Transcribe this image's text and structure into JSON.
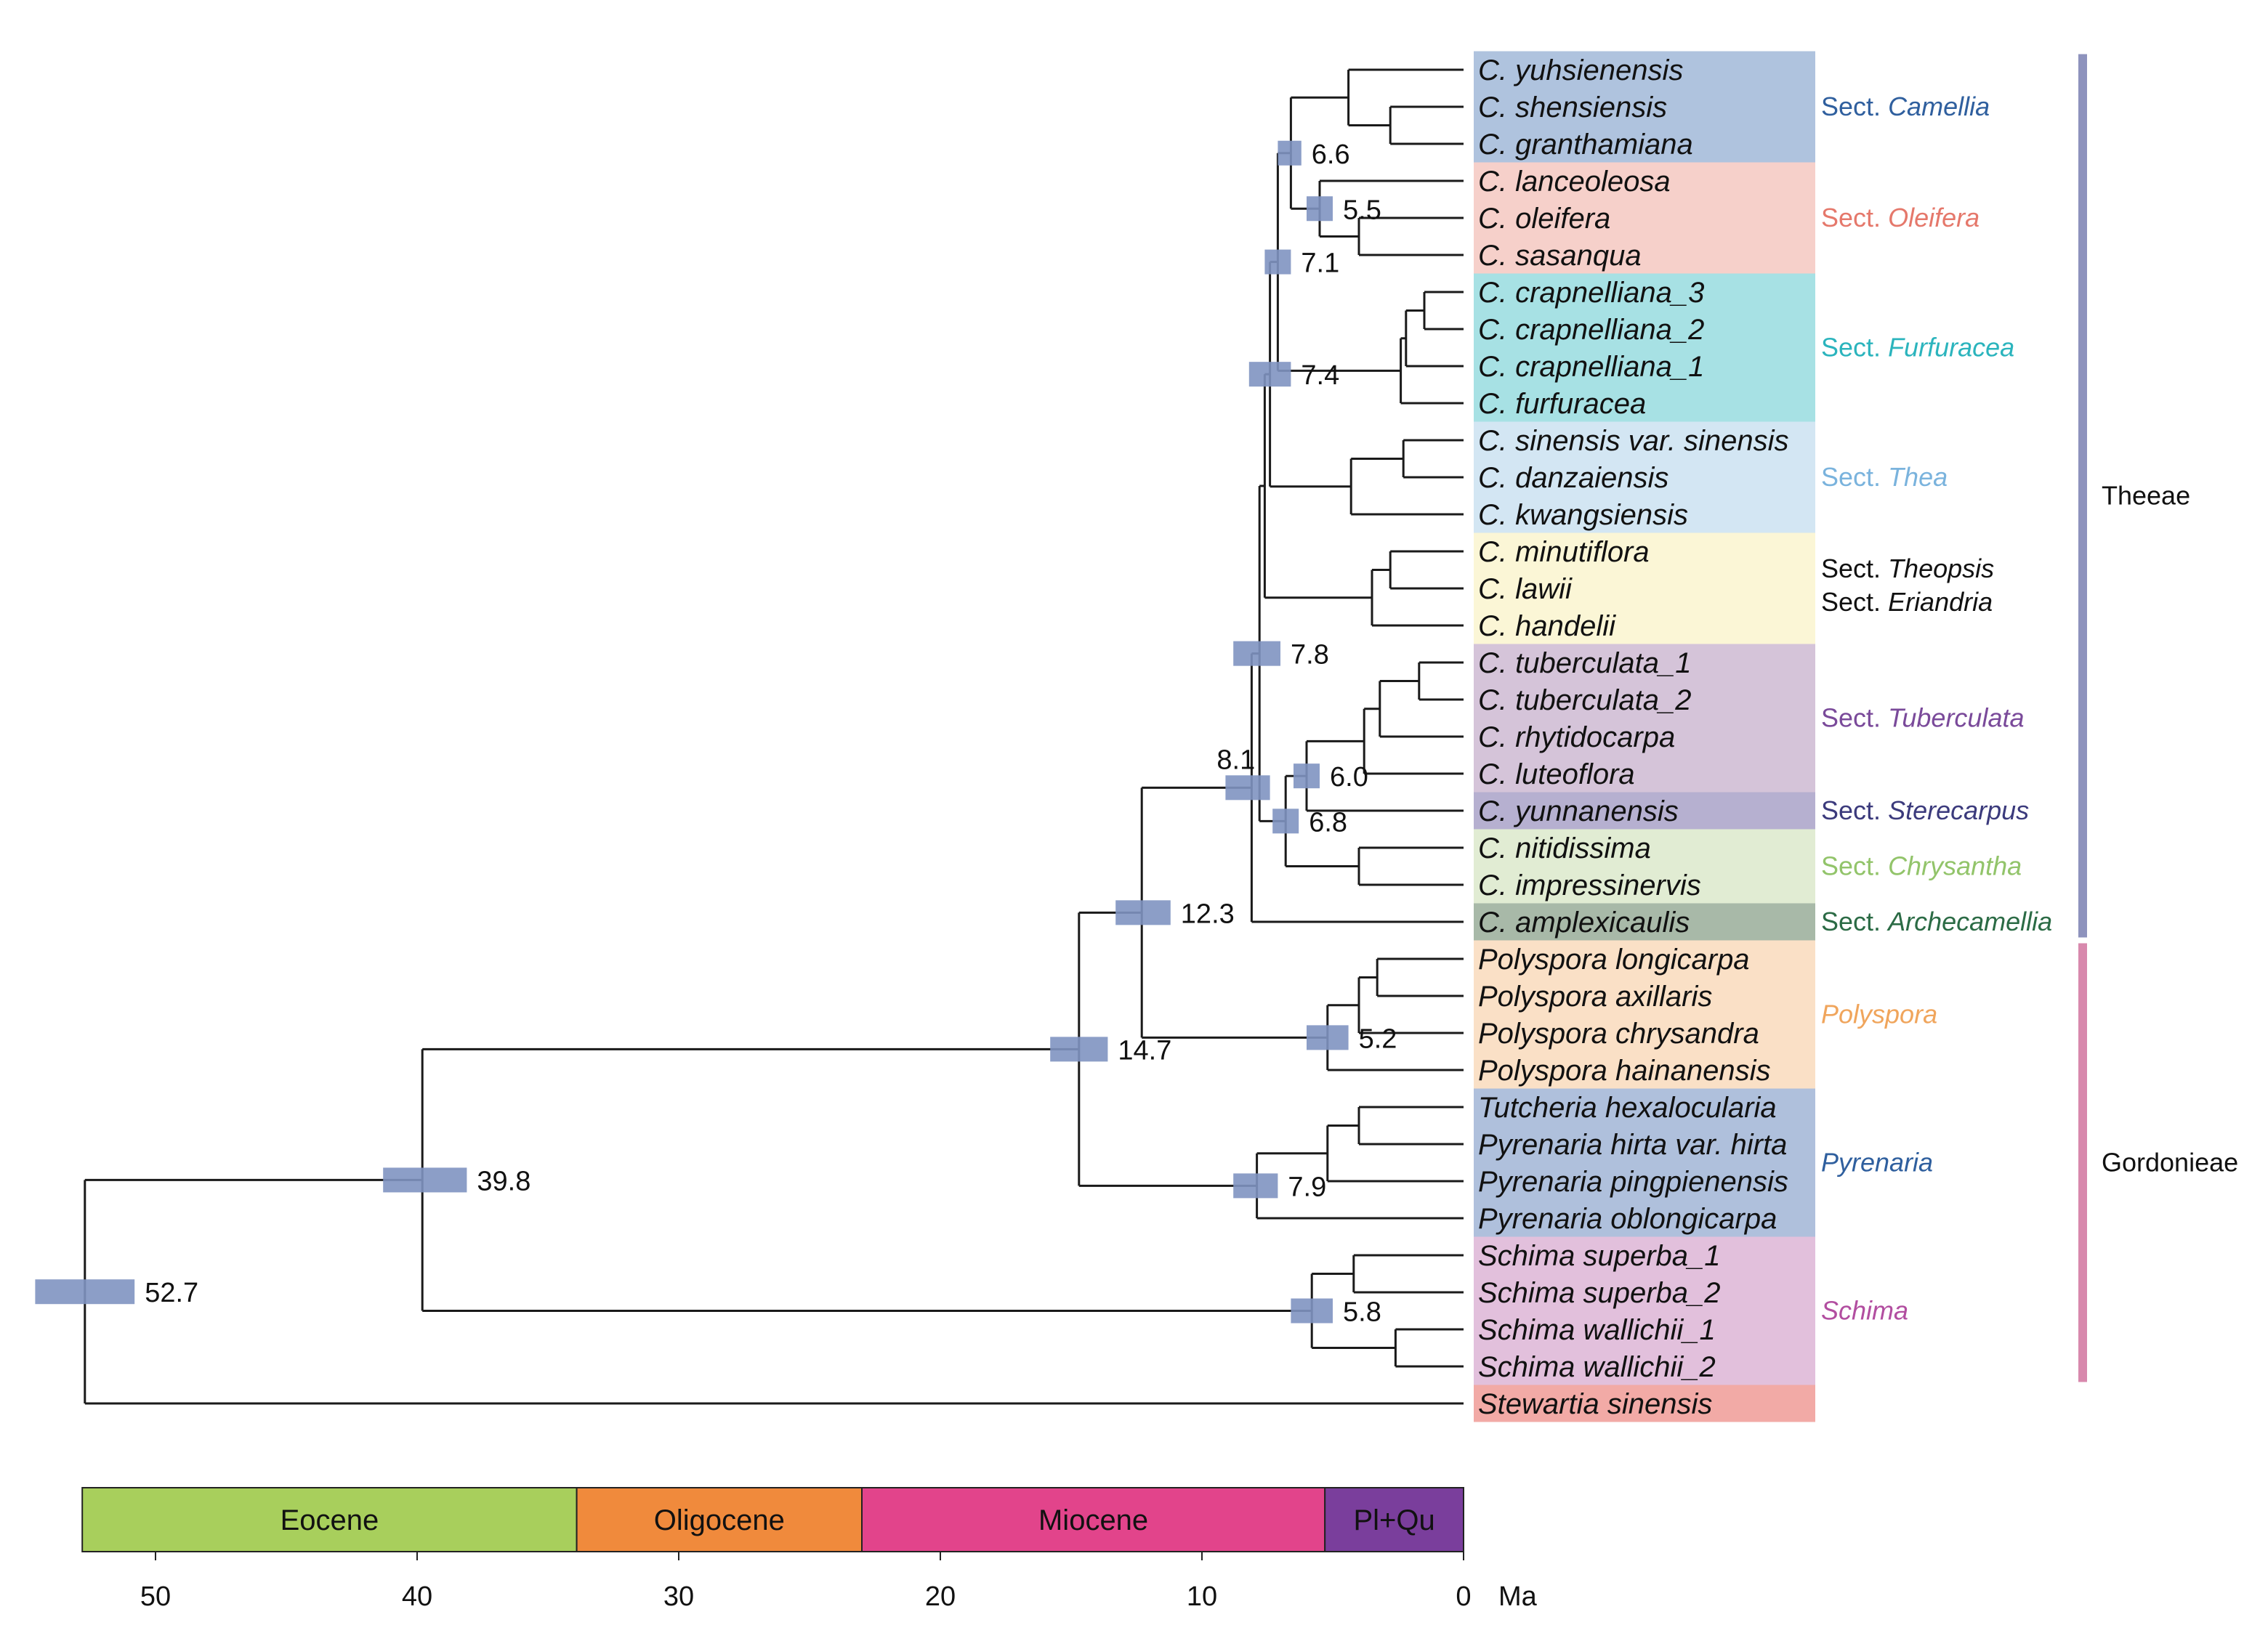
{
  "timescale": {
    "unit": "Ma",
    "ticks": [
      "50",
      "40",
      "30",
      "20",
      "10",
      "0"
    ],
    "epochs": [
      {
        "name": "Eocene",
        "start_ma": 52.8,
        "end_ma": 33.9,
        "color": "#a8cf5c"
      },
      {
        "name": "Oligocene",
        "start_ma": 33.9,
        "end_ma": 23.0,
        "color": "#f08a3c"
      },
      {
        "name": "Miocene",
        "start_ma": 23.0,
        "end_ma": 5.3,
        "color": "#e2448b"
      },
      {
        "name": "Pl+Qu",
        "start_ma": 5.3,
        "end_ma": 0,
        "color": "#7a3e9c"
      }
    ]
  },
  "taxa": [
    {
      "name": "C. yuhsienensis"
    },
    {
      "name": "C. shensiensis"
    },
    {
      "name": "C. granthamiana"
    },
    {
      "name": "C. lanceoleosa"
    },
    {
      "name": "C. oleifera"
    },
    {
      "name": "C. sasanqua"
    },
    {
      "name": "C. crapnelliana_3"
    },
    {
      "name": "C. crapnelliana_2"
    },
    {
      "name": "C. crapnelliana_1"
    },
    {
      "name": "C. furfuracea"
    },
    {
      "name": "C. sinensis var. sinensis"
    },
    {
      "name": "C. danzaiensis"
    },
    {
      "name": "C. kwangsiensis"
    },
    {
      "name": "C. minutiflora"
    },
    {
      "name": "C. lawii"
    },
    {
      "name": "C. handelii"
    },
    {
      "name": "C. tuberculata_1"
    },
    {
      "name": "C. tuberculata_2"
    },
    {
      "name": "C. rhytidocarpa"
    },
    {
      "name": "C. luteoflora"
    },
    {
      "name": "C. yunnanensis"
    },
    {
      "name": "C. nitidissima"
    },
    {
      "name": "C. impressinervis"
    },
    {
      "name": "C. amplexicaulis"
    },
    {
      "name": "Polyspora longicarpa"
    },
    {
      "name": "Polyspora axillaris"
    },
    {
      "name": "Polyspora chrysandra"
    },
    {
      "name": "Polyspora hainanensis"
    },
    {
      "name": "Tutcheria hexalocularia"
    },
    {
      "name": "Pyrenaria hirta var. hirta"
    },
    {
      "name": "Pyrenaria pingpienensis"
    },
    {
      "name": "Pyrenaria oblongicarpa"
    },
    {
      "name": "Schima superba_1"
    },
    {
      "name": "Schima superba_2"
    },
    {
      "name": "Schima wallichii_1"
    },
    {
      "name": "Schima wallichii_2"
    },
    {
      "name": "Stewartia sinensis"
    }
  ],
  "sections": [
    {
      "prefix": "Sect.",
      "name": "Camellia",
      "first": 0,
      "last": 2,
      "bg": "#afc3de",
      "text_color": "#2f5f9e"
    },
    {
      "prefix": "Sect.",
      "name": "Oleifera",
      "first": 3,
      "last": 5,
      "bg": "#f6d0ca",
      "text_color": "#e5786b"
    },
    {
      "prefix": "Sect.",
      "name": "Furfuracea",
      "first": 6,
      "last": 9,
      "bg": "#a7e1e4",
      "text_color": "#2bb4bd"
    },
    {
      "prefix": "Sect.",
      "name": "Thea",
      "first": 10,
      "last": 12,
      "bg": "#d3e6f3",
      "text_color": "#7ab3dd"
    },
    {
      "prefix": "Sect.",
      "name": "Theopsis",
      "first": 13,
      "last": 15,
      "bg": "#fbf6d6",
      "text_color": "#111111"
    },
    {
      "prefix": "Sect.",
      "name": "Eriandria",
      "first": 13,
      "last": 15,
      "bg": "",
      "text_color": "#111111"
    },
    {
      "prefix": "Sect.",
      "name": "Tuberculata",
      "first": 16,
      "last": 19,
      "bg": "#d5c4d9",
      "text_color": "#7a4a9a"
    },
    {
      "prefix": "Sect.",
      "name": "Sterecarpus",
      "first": 20,
      "last": 20,
      "bg": "#b6b0d0",
      "text_color": "#3b3a7c"
    },
    {
      "prefix": "Sect.",
      "name": "Chrysantha",
      "first": 21,
      "last": 22,
      "bg": "#e1ecd3",
      "text_color": "#92c46a"
    },
    {
      "prefix": "Sect.",
      "name": "Archecamellia",
      "first": 23,
      "last": 23,
      "bg": "#a8b9a8",
      "text_color": "#2b6b45"
    },
    {
      "prefix": "",
      "name": "Polyspora",
      "first": 24,
      "last": 27,
      "bg": "#fae0c6",
      "text_color": "#f0a55c"
    },
    {
      "prefix": "",
      "name": "Pyrenaria",
      "first": 28,
      "last": 31,
      "bg": "#afc0dc",
      "text_color": "#2f5f9e"
    },
    {
      "prefix": "",
      "name": "Schima",
      "first": 32,
      "last": 35,
      "bg": "#e2c0dc",
      "text_color": "#b24ea0"
    },
    {
      "prefix": "",
      "name": "",
      "first": 36,
      "last": 36,
      "bg": "#f2aaa6",
      "text_color": "#111111"
    }
  ],
  "tribes": [
    {
      "name": "Theeae",
      "first": 0,
      "last": 23,
      "color": "#8e93bd"
    },
    {
      "name": "Gordonieae",
      "first": 24,
      "last": 35,
      "color": "#d889ad"
    }
  ],
  "nodes": [
    {
      "id": "n1",
      "age": 2.8,
      "kids": [
        "t1",
        "t2"
      ]
    },
    {
      "id": "n2",
      "age": 4.4,
      "kids": [
        "n1",
        "t0"
      ]
    },
    {
      "id": "n3",
      "age": 4.0,
      "kids": [
        "t4",
        "t5"
      ]
    },
    {
      "id": "n4",
      "age": 5.5,
      "kids": [
        "t3",
        "n3"
      ],
      "label": "5.5",
      "hpd": [
        6.0,
        5.0
      ]
    },
    {
      "id": "n5",
      "age": 6.6,
      "kids": [
        "n2",
        "n4"
      ],
      "label": "6.6",
      "hpd": [
        7.1,
        6.2
      ]
    },
    {
      "id": "n6",
      "age": 1.5,
      "kids": [
        "t6",
        "t7"
      ]
    },
    {
      "id": "n7",
      "age": 2.2,
      "kids": [
        "n6",
        "t8"
      ]
    },
    {
      "id": "n8",
      "age": 2.4,
      "kids": [
        "n7",
        "t9"
      ]
    },
    {
      "id": "n9",
      "age": 7.1,
      "kids": [
        "n5",
        "n8"
      ],
      "label": "7.1",
      "hpd": [
        7.6,
        6.6
      ]
    },
    {
      "id": "n10",
      "age": 2.3,
      "kids": [
        "t10",
        "t11"
      ]
    },
    {
      "id": "n11",
      "age": 4.3,
      "kids": [
        "n10",
        "t12"
      ]
    },
    {
      "id": "n12",
      "age": 7.4,
      "kids": [
        "n9",
        "n11"
      ],
      "label": "7.4",
      "hpd": [
        8.2,
        6.6
      ]
    },
    {
      "id": "n13",
      "age": 2.8,
      "kids": [
        "t13",
        "t14"
      ]
    },
    {
      "id": "n14",
      "age": 3.5,
      "kids": [
        "n13",
        "t15"
      ]
    },
    {
      "id": "n15",
      "age": 7.6,
      "kids": [
        "n12",
        "n14"
      ]
    },
    {
      "id": "n16",
      "age": 1.7,
      "kids": [
        "t16",
        "t17"
      ]
    },
    {
      "id": "n17",
      "age": 3.2,
      "kids": [
        "n16",
        "t18"
      ]
    },
    {
      "id": "n18",
      "age": 3.8,
      "kids": [
        "n17",
        "t19"
      ]
    },
    {
      "id": "n19",
      "age": 6.0,
      "kids": [
        "n18",
        "t20"
      ],
      "label": "6.0",
      "hpd": [
        6.5,
        5.5
      ]
    },
    {
      "id": "n20",
      "age": 4.0,
      "kids": [
        "t21",
        "t22"
      ]
    },
    {
      "id": "n21",
      "age": 6.8,
      "kids": [
        "n19",
        "n20"
      ],
      "label": "6.8",
      "hpd": [
        7.3,
        6.3
      ]
    },
    {
      "id": "n22",
      "age": 7.8,
      "kids": [
        "n15",
        "n21"
      ],
      "label": "7.8",
      "hpd": [
        8.8,
        7.0
      ]
    },
    {
      "id": "n23",
      "age": 8.1,
      "kids": [
        "n22",
        "t23"
      ],
      "label": "8.1",
      "hpd": [
        9.1,
        7.4
      ]
    },
    {
      "id": "n24",
      "age": 3.3,
      "kids": [
        "t24",
        "t25"
      ]
    },
    {
      "id": "n25",
      "age": 4.0,
      "kids": [
        "n24",
        "t26"
      ]
    },
    {
      "id": "n26",
      "age": 5.2,
      "kids": [
        "n25",
        "t27"
      ],
      "label": "5.2",
      "hpd": [
        6.0,
        4.4
      ]
    },
    {
      "id": "n27",
      "age": 12.3,
      "kids": [
        "n23",
        "n26"
      ],
      "label": "12.3",
      "hpd": [
        13.3,
        11.2
      ]
    },
    {
      "id": "n28",
      "age": 4.0,
      "kids": [
        "t28",
        "t29"
      ]
    },
    {
      "id": "n29",
      "age": 5.2,
      "kids": [
        "n28",
        "t30"
      ]
    },
    {
      "id": "n30",
      "age": 7.9,
      "kids": [
        "n29",
        "t31"
      ],
      "label": "7.9",
      "hpd": [
        8.8,
        7.1
      ]
    },
    {
      "id": "n31",
      "age": 14.7,
      "kids": [
        "n27",
        "n30"
      ],
      "label": "14.7",
      "hpd": [
        15.8,
        13.6
      ]
    },
    {
      "id": "n32",
      "age": 4.2,
      "kids": [
        "t32",
        "t33"
      ]
    },
    {
      "id": "n33",
      "age": 2.6,
      "kids": [
        "t34",
        "t35"
      ]
    },
    {
      "id": "n34",
      "age": 5.8,
      "kids": [
        "n32",
        "n33"
      ],
      "label": "5.8",
      "hpd": [
        6.6,
        5.0
      ]
    },
    {
      "id": "n35",
      "age": 39.8,
      "kids": [
        "n31",
        "n34"
      ],
      "label": "39.8",
      "hpd": [
        41.3,
        38.1
      ]
    },
    {
      "id": "n36",
      "age": 52.7,
      "kids": [
        "n35",
        "t36"
      ],
      "label": "52.7",
      "hpd": [
        54.6,
        50.8
      ]
    }
  ]
}
